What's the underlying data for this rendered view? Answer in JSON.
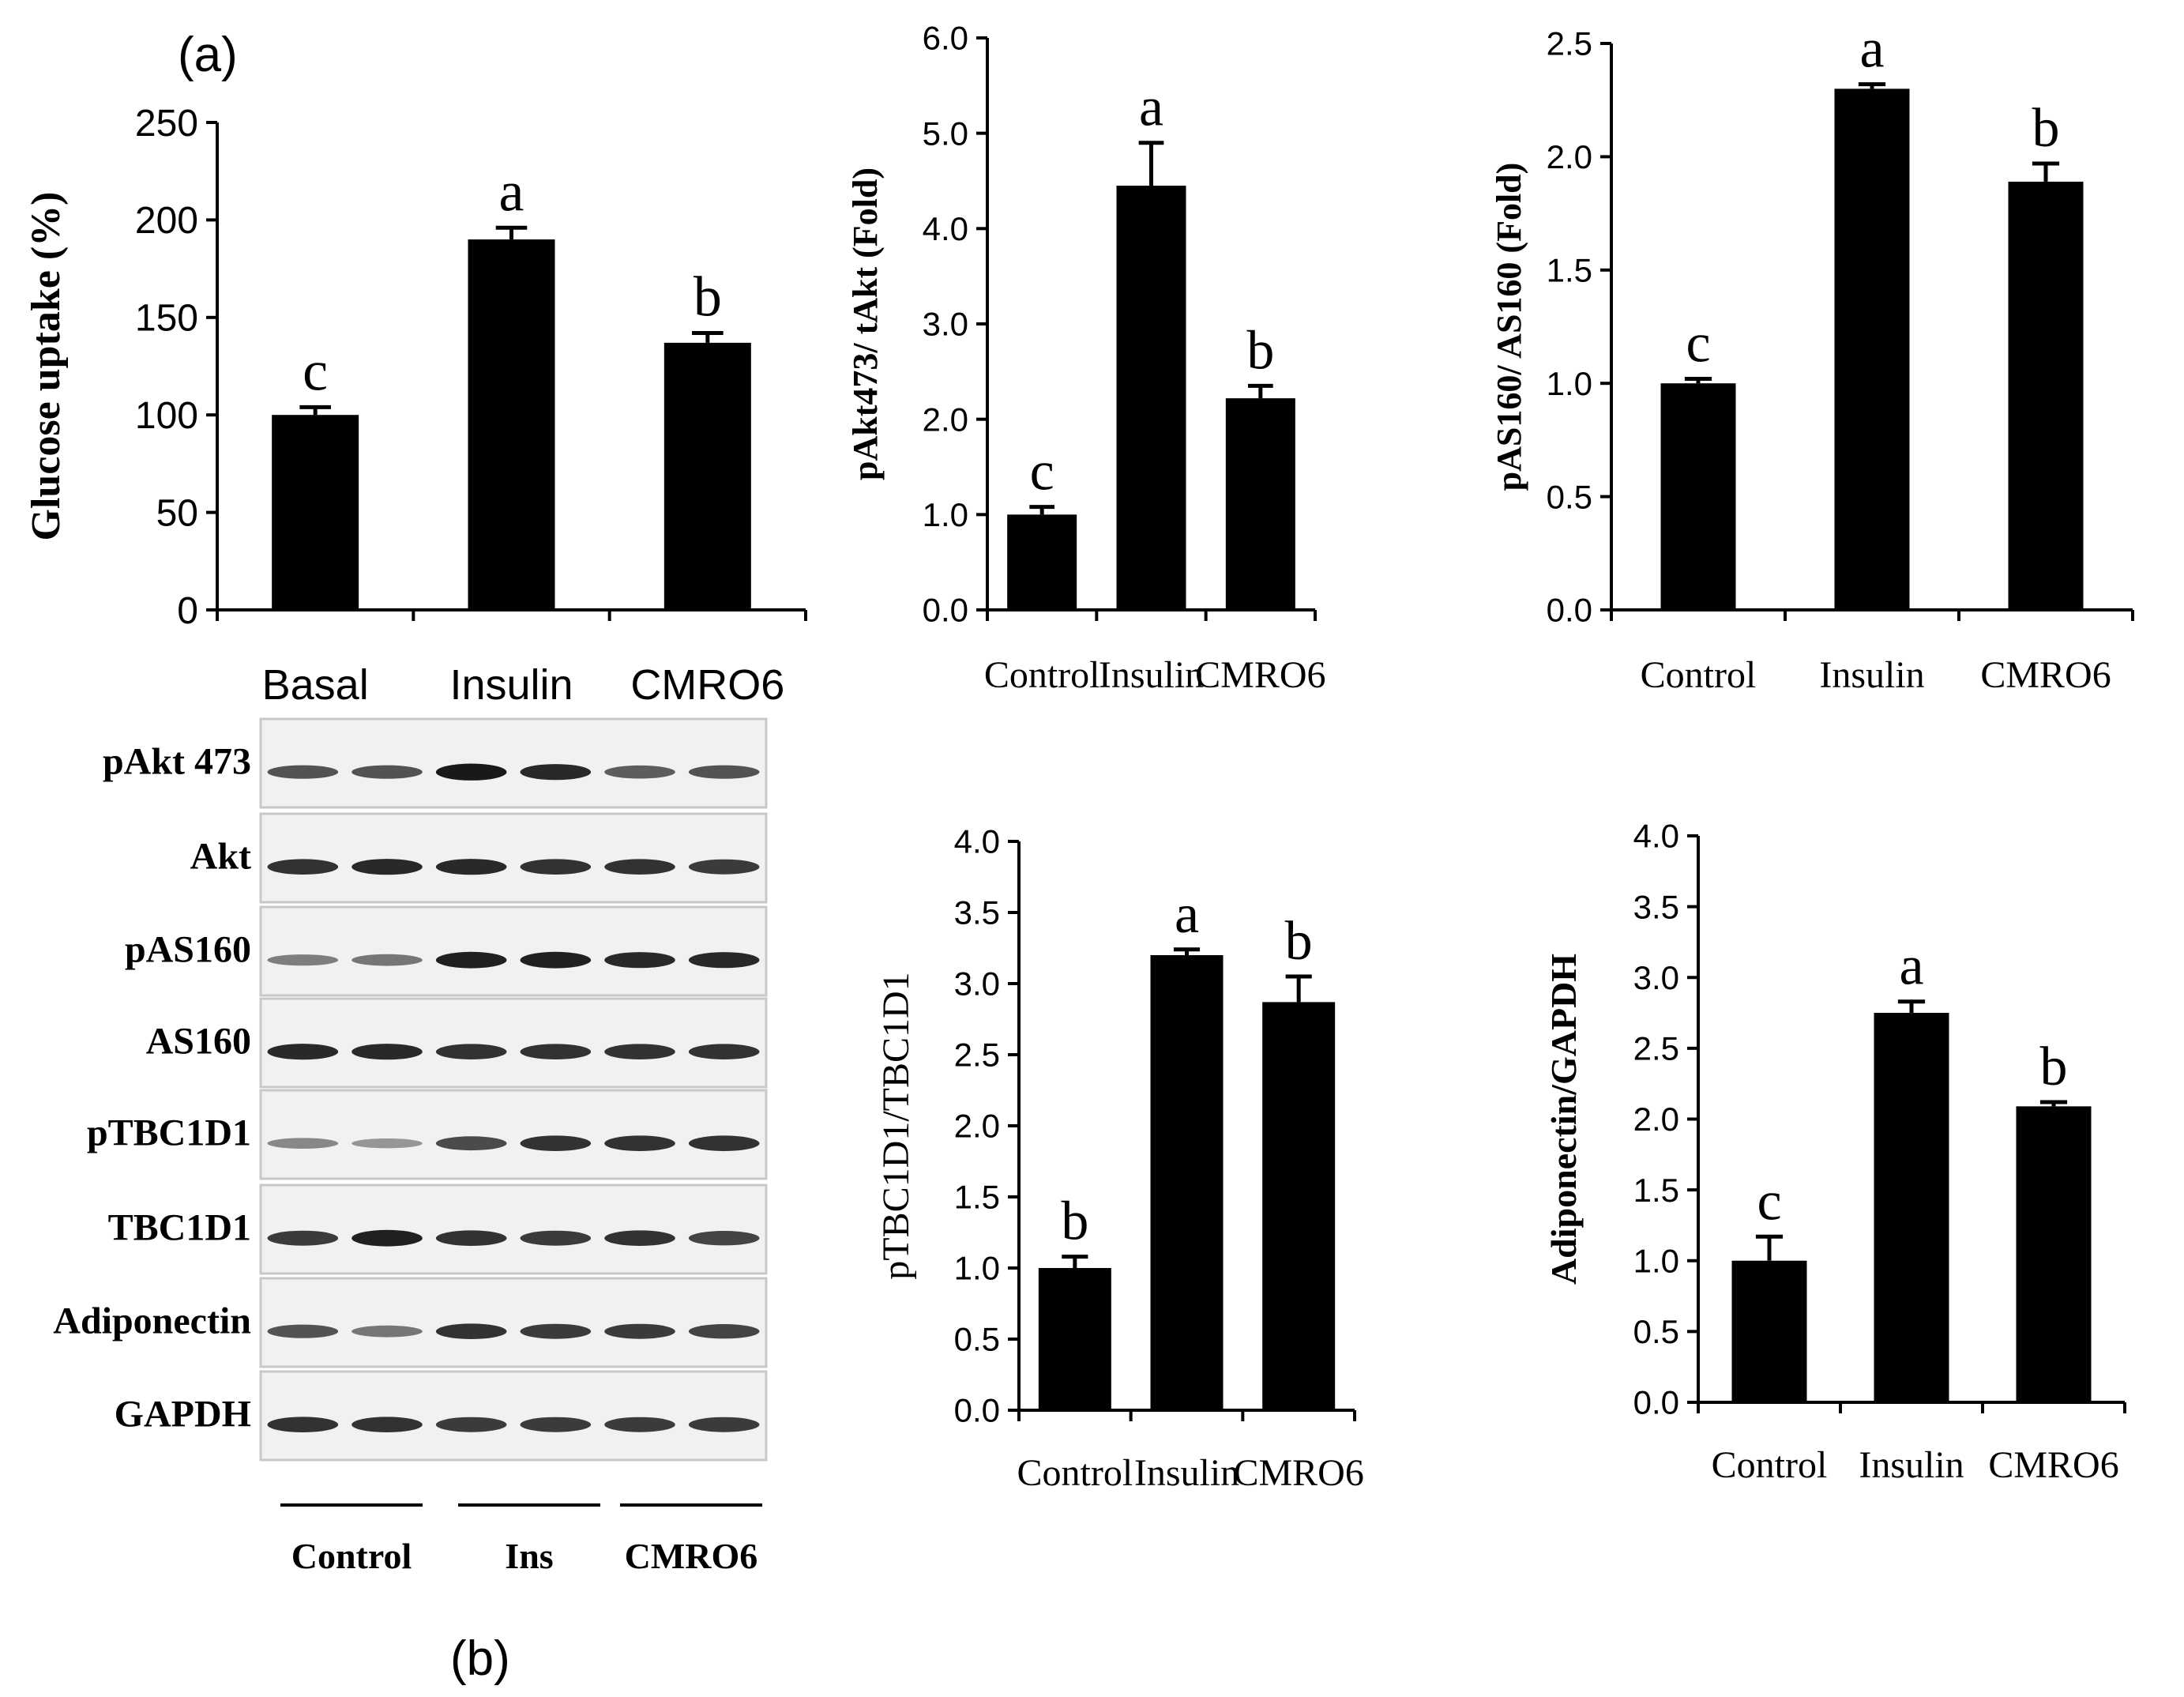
{
  "panel_labels": {
    "a": "(a)",
    "b": "(b)"
  },
  "colors": {
    "bar": "#000000",
    "axis": "#000000",
    "blot_bg": "#f1f1f1",
    "blot_border": "#c8c8c8",
    "band": "#101010"
  },
  "chart_data": [
    {
      "type": "bar",
      "title": "",
      "ylabel": "Glucose uptake (%)",
      "xlabel": "",
      "categories": [
        "Basal",
        "Insulin",
        "CMRO6"
      ],
      "values": [
        100,
        190,
        137
      ],
      "errors": [
        4,
        6,
        5
      ],
      "letters": [
        "c",
        "a",
        "b"
      ],
      "ylim": [
        0,
        250
      ],
      "yticks": [
        "0",
        "50",
        "100",
        "150",
        "200",
        "250"
      ],
      "grid": false
    },
    {
      "type": "bar",
      "title": "",
      "ylabel": "pAkt473/ tAkt (Fold)",
      "xlabel": "",
      "categories": [
        "Control",
        "Insulin",
        "CMRO6"
      ],
      "values": [
        1.0,
        4.45,
        2.22
      ],
      "errors": [
        0.08,
        0.45,
        0.13
      ],
      "letters": [
        "c",
        "a",
        "b"
      ],
      "ylim": [
        0,
        6
      ],
      "yticks": [
        "0.0",
        "1.0",
        "2.0",
        "3.0",
        "4.0",
        "5.0",
        "6.0"
      ],
      "grid": false
    },
    {
      "type": "bar",
      "title": "",
      "ylabel": "pAS160/ AS160 (Fold)",
      "xlabel": "",
      "categories": [
        "Control",
        "Insulin",
        "CMRO6"
      ],
      "values": [
        1.0,
        2.3,
        1.89
      ],
      "errors": [
        0.02,
        0.02,
        0.08
      ],
      "letters": [
        "c",
        "a",
        "b"
      ],
      "ylim": [
        0,
        2.5
      ],
      "yticks": [
        "0.0",
        "0.5",
        "1.0",
        "1.5",
        "2.0",
        "2.5"
      ],
      "grid": false
    },
    {
      "type": "bar",
      "title": "",
      "ylabel": "pTBC1D1/TBC1D1",
      "xlabel": "",
      "categories": [
        "Control",
        "Insulin",
        "CMRO6"
      ],
      "values": [
        1.0,
        3.2,
        2.87
      ],
      "errors": [
        0.08,
        0.04,
        0.18
      ],
      "letters": [
        "b",
        "a",
        "b"
      ],
      "ylim": [
        0,
        4
      ],
      "yticks": [
        "0.0",
        "0.5",
        "1.0",
        "1.5",
        "2.0",
        "2.5",
        "3.0",
        "3.5",
        "4.0"
      ],
      "grid": false
    },
    {
      "type": "bar",
      "title": "",
      "ylabel": "Adiponectin/GAPDH",
      "xlabel": "",
      "categories": [
        "Control",
        "Insulin",
        "CMRO6"
      ],
      "values": [
        1.0,
        2.75,
        2.09
      ],
      "errors": [
        0.17,
        0.08,
        0.03
      ],
      "letters": [
        "c",
        "a",
        "b"
      ],
      "ylim": [
        0,
        4
      ],
      "yticks": [
        "0.0",
        "0.5",
        "1.0",
        "1.5",
        "2.0",
        "2.5",
        "3.0",
        "3.5",
        "4.0"
      ],
      "grid": false
    }
  ],
  "blot": {
    "rows": [
      {
        "label": "pAkt 473",
        "bands": [
          0.6,
          0.6,
          0.95,
          0.85,
          0.55,
          0.6
        ]
      },
      {
        "label": "Akt",
        "bands": [
          0.8,
          0.85,
          0.85,
          0.8,
          0.8,
          0.75
        ]
      },
      {
        "label": "pAS160",
        "bands": [
          0.35,
          0.4,
          0.9,
          0.9,
          0.85,
          0.85
        ]
      },
      {
        "label": "AS160",
        "bands": [
          0.85,
          0.85,
          0.8,
          0.8,
          0.8,
          0.8
        ]
      },
      {
        "label": "pTBC1D1",
        "bands": [
          0.3,
          0.2,
          0.65,
          0.8,
          0.8,
          0.8
        ]
      },
      {
        "label": "TBC1D1",
        "bands": [
          0.75,
          0.9,
          0.8,
          0.75,
          0.8,
          0.7
        ]
      },
      {
        "label": "Adiponectin",
        "bands": [
          0.6,
          0.4,
          0.8,
          0.75,
          0.75,
          0.7
        ]
      },
      {
        "label": "GAPDH",
        "bands": [
          0.8,
          0.8,
          0.75,
          0.75,
          0.75,
          0.75
        ]
      }
    ],
    "groups": [
      "Control",
      "Ins",
      "CMRO6"
    ]
  }
}
